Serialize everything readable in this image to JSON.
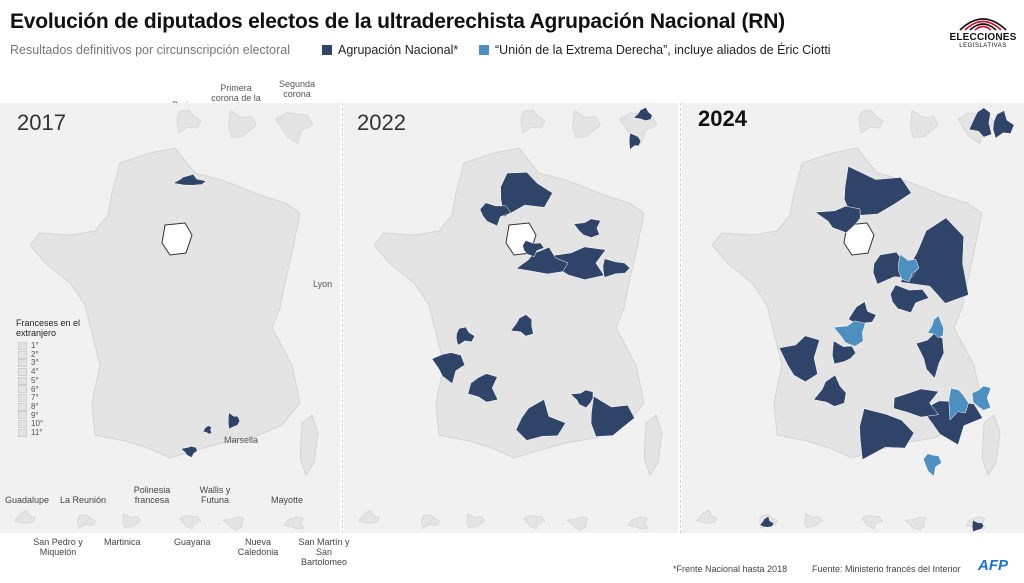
{
  "title": "Evolución de diputados electos de la ultraderechista Agrupación Nacional (RN)",
  "subtitle": "Resultados definitivos por circunscripción electoral",
  "legend": [
    {
      "label": "Agrupación Nacional*",
      "color": "#2f4468"
    },
    {
      "label": "“Unión de la Extrema Derecha”, incluye aliados de Éric Ciotti",
      "color": "#4f8fbf"
    }
  ],
  "logo": {
    "line1": "ELECCIONES",
    "line2": "LEGISLATIVAS"
  },
  "inset_labels": {
    "paris": "Paris",
    "primera": "Primera corona de la capital",
    "segunda": "Segunda corona"
  },
  "city_labels": {
    "lyon": "Lyon",
    "marsella": "Marsella"
  },
  "abroad": {
    "title": "Franceses en el extranjero",
    "items": [
      "1°",
      "2°",
      "3°",
      "4°",
      "5°",
      "6°",
      "7°",
      "8°",
      "9°",
      "10°",
      "11°"
    ]
  },
  "territories": {
    "guadalupe": "Guadalupe",
    "reunion": "La Reunión",
    "polinesia": "Polinesia francesa",
    "wallis": "Wallis y Futuna",
    "mayotte": "Mayotte",
    "sanpedro": "San Pedro y Miquelón",
    "martinica": "Martinica",
    "guayana": "Guayana",
    "caledonia": "Nueva Caledonia",
    "sanmartin": "San Martín y San Bartolomeo"
  },
  "panels": [
    {
      "year": "2017",
      "emphasis": false
    },
    {
      "year": "2022",
      "emphasis": false
    },
    {
      "year": "2024",
      "emphasis": true
    }
  ],
  "colors": {
    "rn": "#2f4468",
    "uxd": "#4f8fbf",
    "land": "#e4e4e4",
    "border": "#ffffff",
    "panel": "#f1f1f1"
  },
  "footnote": "*Frente Nacional hasta 2018",
  "source": "Fuente: Ministerio francés del Interior",
  "brand": "AFP"
}
